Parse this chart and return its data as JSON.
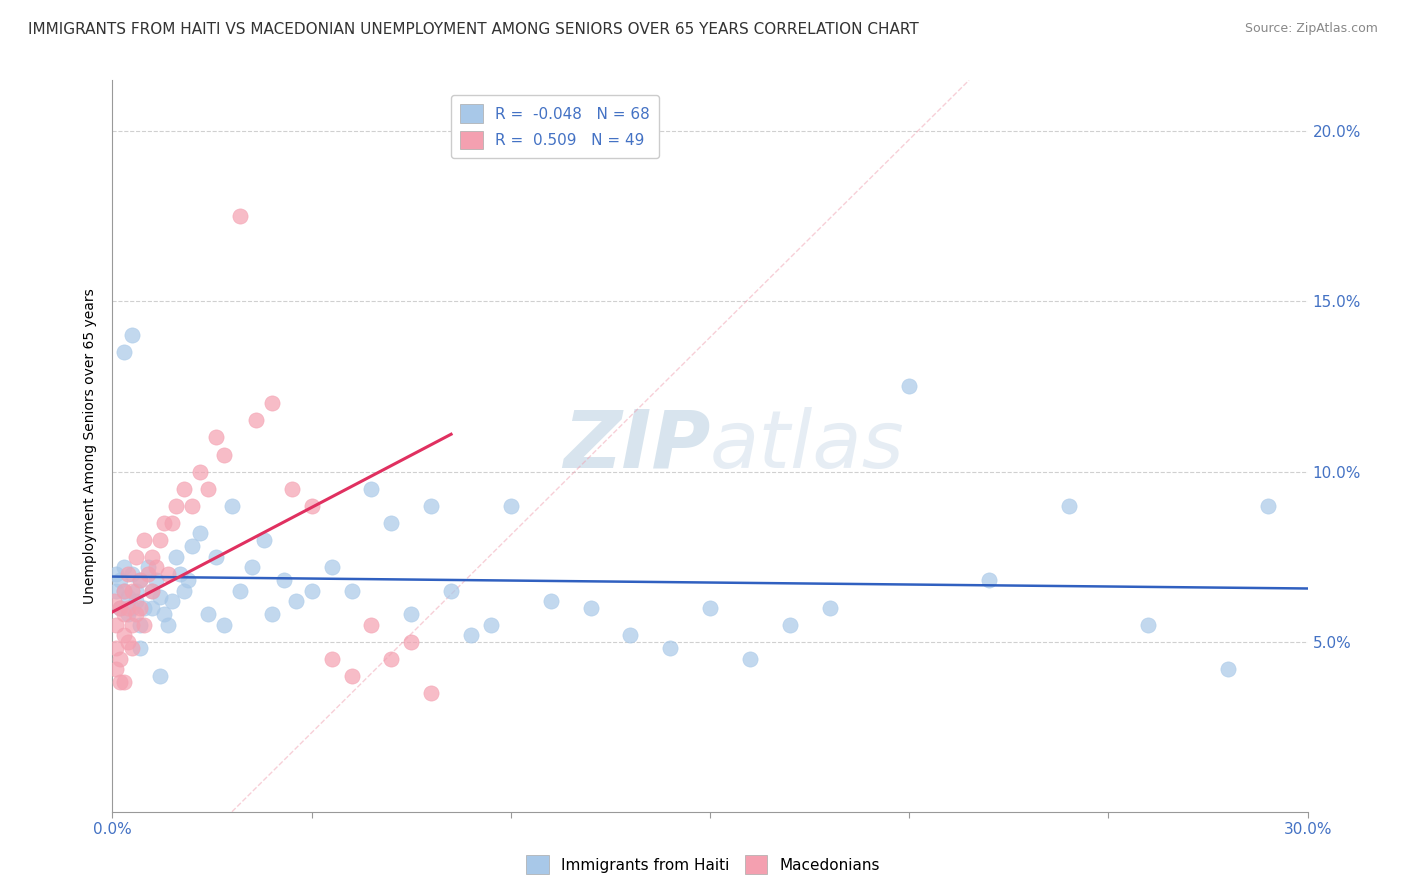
{
  "title": "IMMIGRANTS FROM HAITI VS MACEDONIAN UNEMPLOYMENT AMONG SENIORS OVER 65 YEARS CORRELATION CHART",
  "source": "Source: ZipAtlas.com",
  "ylabel": "Unemployment Among Seniors over 65 years",
  "xlim": [
    0.0,
    0.3
  ],
  "ylim": [
    0.0,
    0.215
  ],
  "xticks": [
    0.0,
    0.05,
    0.1,
    0.15,
    0.2,
    0.25,
    0.3
  ],
  "yticks": [
    0.05,
    0.1,
    0.15,
    0.2
  ],
  "ytick_labels": [
    "5.0%",
    "10.0%",
    "15.0%",
    "20.0%"
  ],
  "xtick_labels": [
    "0.0%",
    "",
    "",
    "",
    "",
    "",
    "30.0%"
  ],
  "blue_R": -0.048,
  "blue_N": 68,
  "pink_R": 0.509,
  "pink_N": 49,
  "legend_label_blue": "Immigrants from Haiti",
  "legend_label_pink": "Macedonians",
  "blue_color": "#a8c8e8",
  "pink_color": "#f4a0b0",
  "blue_line_color": "#3060c0",
  "pink_line_color": "#e03060",
  "watermark_color": "#c8d8e8",
  "blue_scatter_x": [
    0.001,
    0.001,
    0.002,
    0.002,
    0.003,
    0.003,
    0.004,
    0.004,
    0.005,
    0.005,
    0.006,
    0.006,
    0.007,
    0.007,
    0.008,
    0.009,
    0.01,
    0.01,
    0.011,
    0.012,
    0.013,
    0.014,
    0.015,
    0.016,
    0.017,
    0.018,
    0.019,
    0.02,
    0.022,
    0.024,
    0.026,
    0.028,
    0.03,
    0.032,
    0.035,
    0.038,
    0.04,
    0.043,
    0.046,
    0.05,
    0.055,
    0.06,
    0.065,
    0.07,
    0.075,
    0.08,
    0.085,
    0.09,
    0.095,
    0.1,
    0.11,
    0.12,
    0.13,
    0.14,
    0.15,
    0.16,
    0.17,
    0.18,
    0.2,
    0.22,
    0.24,
    0.26,
    0.28,
    0.29,
    0.005,
    0.003,
    0.007,
    0.012
  ],
  "blue_scatter_y": [
    0.065,
    0.07,
    0.06,
    0.068,
    0.065,
    0.072,
    0.063,
    0.058,
    0.06,
    0.07,
    0.065,
    0.062,
    0.055,
    0.068,
    0.06,
    0.072,
    0.065,
    0.06,
    0.068,
    0.063,
    0.058,
    0.055,
    0.062,
    0.075,
    0.07,
    0.065,
    0.068,
    0.078,
    0.082,
    0.058,
    0.075,
    0.055,
    0.09,
    0.065,
    0.072,
    0.08,
    0.058,
    0.068,
    0.062,
    0.065,
    0.072,
    0.065,
    0.095,
    0.085,
    0.058,
    0.09,
    0.065,
    0.052,
    0.055,
    0.09,
    0.062,
    0.06,
    0.052,
    0.048,
    0.06,
    0.045,
    0.055,
    0.06,
    0.125,
    0.068,
    0.09,
    0.055,
    0.042,
    0.09,
    0.14,
    0.135,
    0.048,
    0.04
  ],
  "pink_scatter_x": [
    0.0005,
    0.001,
    0.001,
    0.001,
    0.002,
    0.002,
    0.002,
    0.003,
    0.003,
    0.003,
    0.003,
    0.004,
    0.004,
    0.004,
    0.005,
    0.005,
    0.005,
    0.006,
    0.006,
    0.007,
    0.007,
    0.008,
    0.008,
    0.009,
    0.01,
    0.01,
    0.011,
    0.012,
    0.013,
    0.014,
    0.015,
    0.016,
    0.018,
    0.02,
    0.022,
    0.024,
    0.026,
    0.028,
    0.032,
    0.036,
    0.04,
    0.045,
    0.05,
    0.055,
    0.06,
    0.065,
    0.07,
    0.075,
    0.08
  ],
  "pink_scatter_y": [
    0.062,
    0.048,
    0.055,
    0.042,
    0.06,
    0.045,
    0.038,
    0.058,
    0.052,
    0.065,
    0.038,
    0.06,
    0.05,
    0.07,
    0.055,
    0.048,
    0.065,
    0.058,
    0.075,
    0.06,
    0.068,
    0.055,
    0.08,
    0.07,
    0.065,
    0.075,
    0.072,
    0.08,
    0.085,
    0.07,
    0.085,
    0.09,
    0.095,
    0.09,
    0.1,
    0.095,
    0.11,
    0.105,
    0.175,
    0.115,
    0.12,
    0.095,
    0.09,
    0.045,
    0.04,
    0.055,
    0.045,
    0.05,
    0.035
  ]
}
